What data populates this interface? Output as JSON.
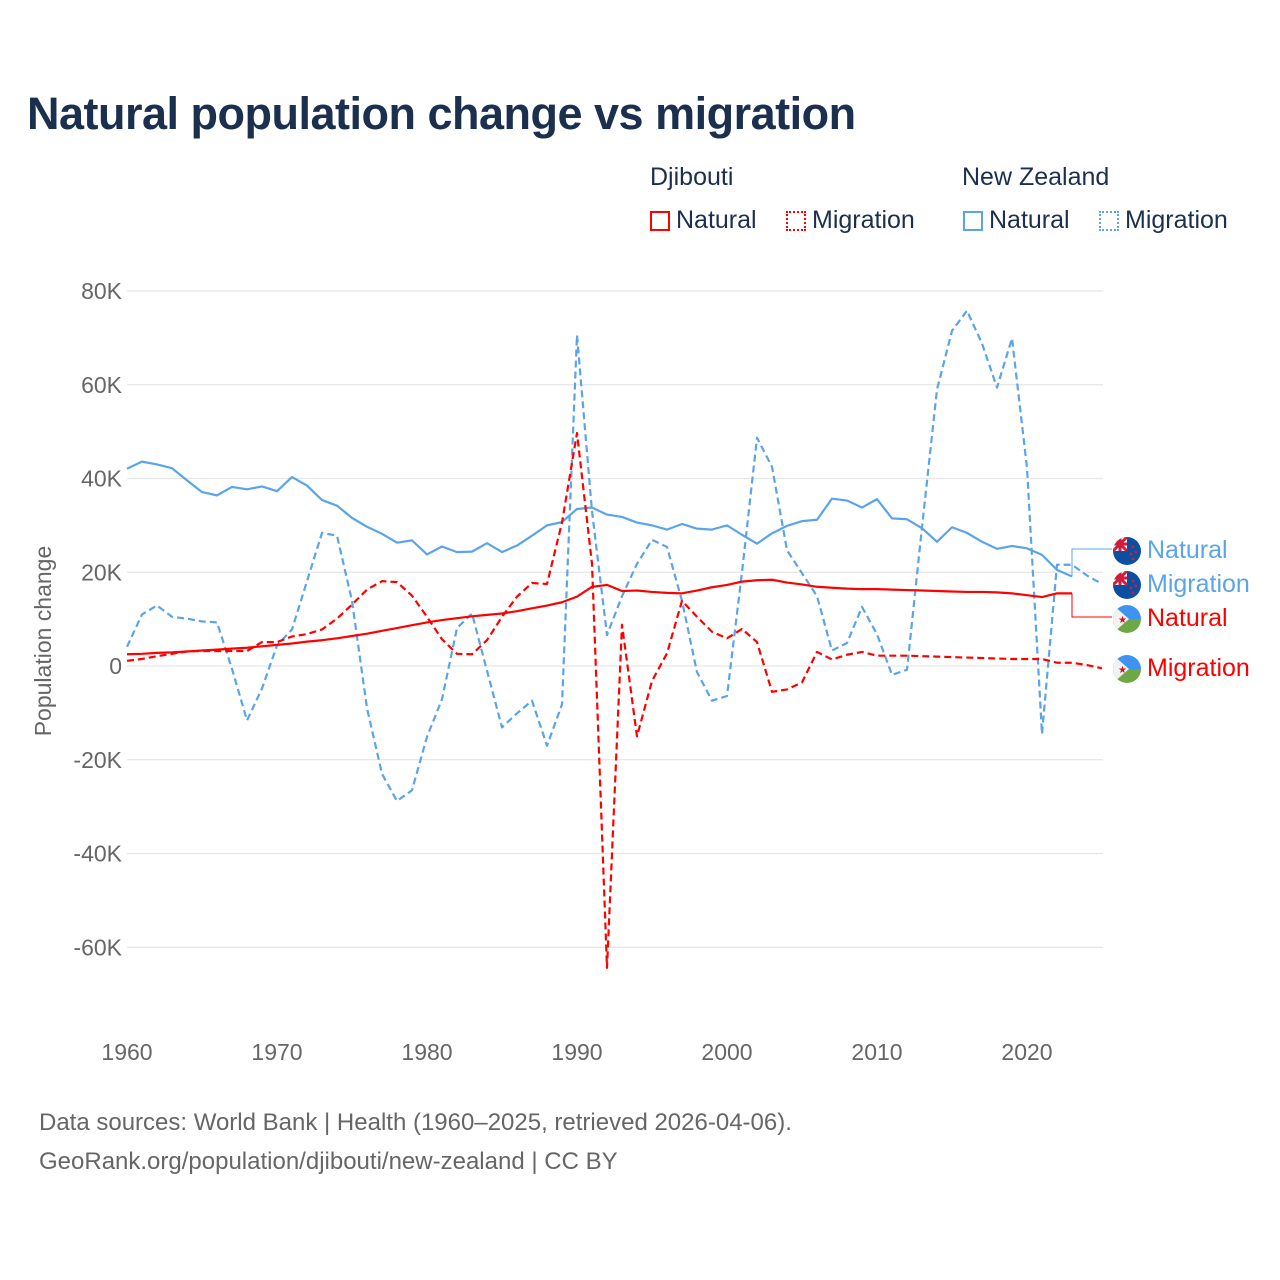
{
  "title": "Natural population change vs migration",
  "legend": {
    "groups": [
      {
        "name": "Djibouti",
        "color": "#ff0000",
        "items": [
          "Natural",
          "Migration"
        ]
      },
      {
        "name": "New Zealand",
        "color": "#5ba4ea",
        "items": [
          "Natural",
          "Migration"
        ]
      }
    ]
  },
  "footer": {
    "line1": "Data sources: World Bank | Health (1960–2025, retrieved 2026-04-06).",
    "line2": "GeoRank.org/population/djibouti/new-zealand | CC BY"
  },
  "chart_data": {
    "type": "line",
    "title": "Natural population change vs migration",
    "xlabel": "",
    "ylabel": "Population change",
    "xlim": [
      1960,
      2025
    ],
    "ylim": [
      -70000,
      80000
    ],
    "x_ticks": [
      "1960",
      "1970",
      "1980",
      "1990",
      "2000",
      "2010",
      "2020"
    ],
    "y_ticks": [
      "80K",
      "60K",
      "40K",
      "20K",
      "0",
      "-20K",
      "-40K",
      "-60K"
    ],
    "grid": true,
    "end_labels": [
      {
        "text": "Natural",
        "series": "New Zealand Natural",
        "flag": "nz-flag"
      },
      {
        "text": "Migration",
        "series": "New Zealand Migration",
        "flag": "nz-flag"
      },
      {
        "text": "Natural",
        "series": "Djibouti Natural",
        "flag": "djibouti-flag"
      },
      {
        "text": "Migration",
        "series": "Djibouti Migration",
        "flag": "djibouti-flag"
      }
    ],
    "series": [
      {
        "name": "New Zealand Natural",
        "color": "#5ba4ea",
        "dash": false,
        "start": 1960,
        "values": [
          42100,
          43600,
          43000,
          42200,
          39600,
          37100,
          36400,
          38200,
          37700,
          38300,
          37300,
          40300,
          38500,
          35400,
          34200,
          31600,
          29700,
          28200,
          26300,
          26800,
          23800,
          25500,
          24300,
          24400,
          26200,
          24300,
          25700,
          27800,
          30000,
          30700,
          33500,
          33800,
          32300,
          31800,
          30600,
          30000,
          29100,
          30300,
          29300,
          29100,
          30000,
          28000,
          26100,
          28300,
          29900,
          30900,
          31200,
          35700,
          35300,
          33800,
          35600,
          31500,
          31300,
          29400,
          26500,
          29600,
          28400,
          26500,
          25000,
          25600,
          25100,
          23700,
          20500,
          19100
        ]
      },
      {
        "name": "New Zealand Migration",
        "color": "#5ba4ea",
        "dash": true,
        "start": 1960,
        "values": [
          4100,
          11000,
          12900,
          10500,
          10100,
          9500,
          9300,
          -600,
          -11600,
          -4800,
          4400,
          7800,
          18100,
          28400,
          27800,
          13900,
          -9000,
          -23000,
          -28800,
          -26500,
          -15100,
          -7100,
          8100,
          11200,
          -1000,
          -13100,
          -10100,
          -7400,
          -17000,
          -8200,
          70600,
          33000,
          6600,
          14900,
          21800,
          26900,
          25400,
          13900,
          -1300,
          -7400,
          -6400,
          20000,
          48700,
          42500,
          24700,
          19800,
          14900,
          3300,
          4900,
          12600,
          6800,
          -1900,
          -800,
          29600,
          59000,
          71500,
          75800,
          68800,
          59400,
          69900,
          42300,
          -14500,
          21600,
          21600,
          19300,
          17500
        ]
      },
      {
        "name": "Djibouti Natural",
        "color": "#ff0000",
        "dash": false,
        "start": 1960,
        "values": [
          2500,
          2600,
          2800,
          2900,
          3100,
          3300,
          3500,
          3700,
          3900,
          4200,
          4500,
          4800,
          5200,
          5500,
          5900,
          6400,
          6900,
          7500,
          8100,
          8700,
          9300,
          9800,
          10200,
          10600,
          10900,
          11200,
          11700,
          12300,
          12900,
          13600,
          14800,
          16900,
          17300,
          16000,
          16100,
          15800,
          15600,
          15500,
          16100,
          16800,
          17300,
          18000,
          18300,
          18400,
          17800,
          17400,
          16900,
          16700,
          16500,
          16400,
          16400,
          16300,
          16200,
          16100,
          16000,
          15900,
          15800,
          15800,
          15700,
          15500,
          15100,
          14700,
          15500,
          15500
        ]
      },
      {
        "name": "Djibouti Migration",
        "color": "#ff0000",
        "dash": true,
        "start": 1960,
        "values": [
          1100,
          1500,
          2100,
          2600,
          3100,
          3200,
          3200,
          3200,
          3200,
          5100,
          5100,
          6300,
          6800,
          7800,
          10100,
          13100,
          16300,
          18100,
          17900,
          15000,
          10500,
          5700,
          2600,
          2500,
          5500,
          10500,
          14800,
          17700,
          17500,
          30600,
          49700,
          21800,
          -64400,
          8800,
          -15000,
          -3200,
          2700,
          13900,
          10500,
          7300,
          5900,
          7900,
          5100,
          -5500,
          -5000,
          -3500,
          3000,
          1400,
          2400,
          3000,
          2200,
          2200,
          2200,
          2100,
          2000,
          1900,
          1800,
          1700,
          1600,
          1500,
          1500,
          1500,
          700,
          700,
          200,
          -500
        ]
      }
    ]
  }
}
